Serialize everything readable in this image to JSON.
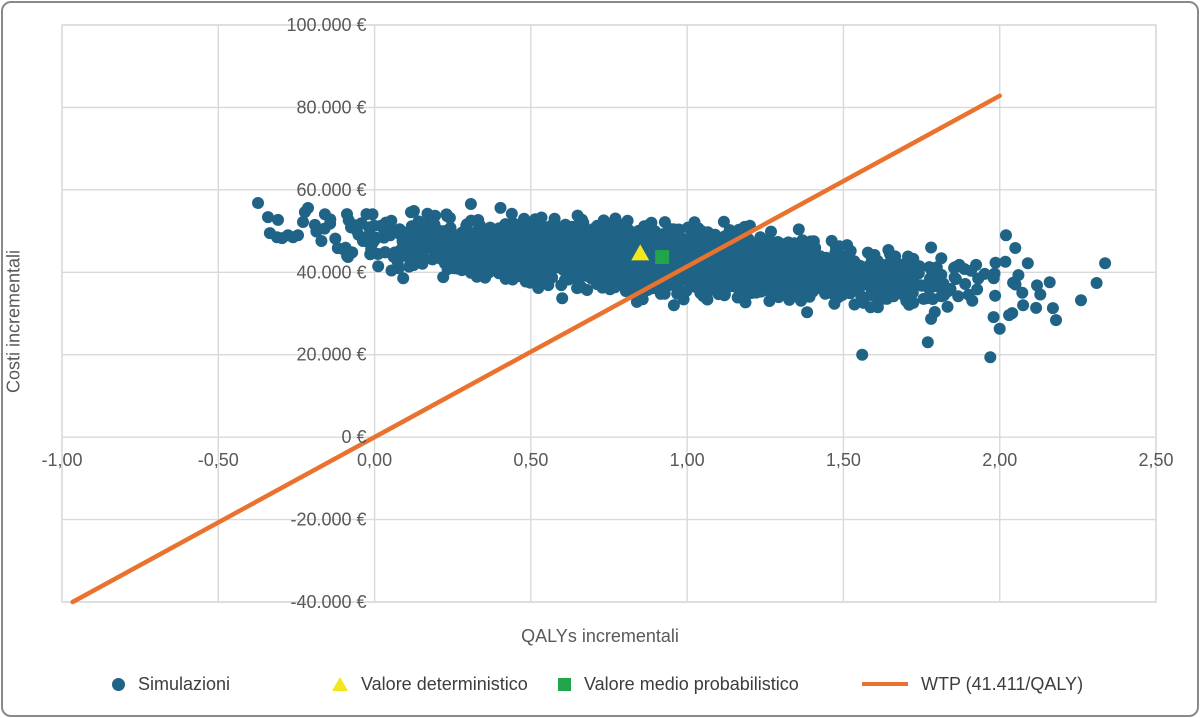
{
  "chart_data": {
    "type": "scatter",
    "title": "",
    "xlabel": "QALYs incrementali",
    "ylabel": "Costi incrementali",
    "xlim": [
      -1.0,
      2.5
    ],
    "ylim": [
      -40000,
      100000
    ],
    "grid": true,
    "axes_cross_at_origin": true,
    "x_ticks": [
      {
        "value": -1.0,
        "label": "-1,00"
      },
      {
        "value": -0.5,
        "label": "-0,50"
      },
      {
        "value": 0.0,
        "label": "0,00"
      },
      {
        "value": 0.5,
        "label": "0,50"
      },
      {
        "value": 1.0,
        "label": "1,00"
      },
      {
        "value": 1.5,
        "label": "1,50"
      },
      {
        "value": 2.0,
        "label": "2,00"
      },
      {
        "value": 2.5,
        "label": "2,50"
      }
    ],
    "y_ticks": [
      {
        "value": -40000,
        "label": "-40.000 €"
      },
      {
        "value": -20000,
        "label": "-20.000 €"
      },
      {
        "value": 0,
        "label": "0 €"
      },
      {
        "value": 20000,
        "label": "20.000 €"
      },
      {
        "value": 40000,
        "label": "40.000 €"
      },
      {
        "value": 60000,
        "label": "60.000 €"
      },
      {
        "value": 80000,
        "label": "80.000 €"
      },
      {
        "value": 100000,
        "label": "100.000 €"
      }
    ],
    "legend_position": "bottom",
    "series": [
      {
        "name": "Simulazioni",
        "type": "scatter",
        "marker": "circle",
        "color": "#1f6386",
        "point_radius_px": 6,
        "note": "Monte Carlo cloud of ~3000 simulations; dense tilted ellipse approximated by the distribution below plus explicitly digitized sparse tail/outlier points.",
        "distribution": {
          "n_points": 3000,
          "seed": 42,
          "x_mean": 0.88,
          "x_sd": 0.42,
          "x_range": [
            -0.16,
            2.12
          ],
          "cost_intercept": 48200,
          "cost_slope": -5600,
          "cost_noise_sd": 3400,
          "cost_range": [
            26200,
            57200
          ]
        },
        "tail_points": [
          [
            -0.373,
            56800
          ],
          [
            -0.341,
            53400
          ],
          [
            -0.335,
            49500
          ],
          [
            -0.312,
            48500
          ],
          [
            -0.309,
            52700
          ],
          [
            -0.296,
            48300
          ],
          [
            -0.277,
            49000
          ],
          [
            -0.261,
            48500
          ],
          [
            -0.245,
            49000
          ],
          [
            -0.229,
            52200
          ],
          [
            -0.223,
            54600
          ],
          [
            -0.213,
            55600
          ],
          [
            -0.191,
            51500
          ],
          [
            -0.186,
            49900
          ],
          [
            -0.17,
            47600
          ],
          [
            -0.16,
            50600
          ],
          [
            -0.085,
            43700
          ],
          [
            2.337,
            42200
          ],
          [
            2.31,
            37400
          ],
          [
            2.26,
            33200
          ],
          [
            2.18,
            28400
          ],
          [
            2.17,
            31300
          ],
          [
            2.16,
            37600
          ],
          [
            2.13,
            34600
          ],
          [
            2.09,
            42200
          ],
          [
            2.05,
            45900
          ],
          [
            2.04,
            30100
          ],
          [
            2.03,
            29600
          ],
          [
            2.02,
            49000
          ],
          [
            2.0,
            26300
          ],
          [
            1.97,
            19400
          ],
          [
            1.77,
            23000
          ],
          [
            1.56,
            20000
          ]
        ]
      },
      {
        "name": "Valore deterministico",
        "type": "point",
        "marker": "triangle",
        "color": "#f2e71c",
        "x": 0.85,
        "y": 44600
      },
      {
        "name": "Valore medio probabilistico",
        "type": "point",
        "marker": "square",
        "color": "#21a44a",
        "x": 0.92,
        "y": 43700
      },
      {
        "name": "WTP (41.411/QALY)",
        "type": "line",
        "color": "#e9722e",
        "wtp_per_qaly": 41411,
        "points": [
          [
            -0.966,
            -40000
          ],
          [
            2.0,
            82822
          ]
        ]
      }
    ]
  },
  "colors": {
    "dot_blue": "#1f6386",
    "triangle_yellow": "#f2e71c",
    "square_green": "#21a44a",
    "wtp_orange": "#e9722e",
    "gridline": "#d9d9d9",
    "tick_text": "#595959",
    "legend_text": "#3d3d3d",
    "frame_border": "#898989"
  }
}
